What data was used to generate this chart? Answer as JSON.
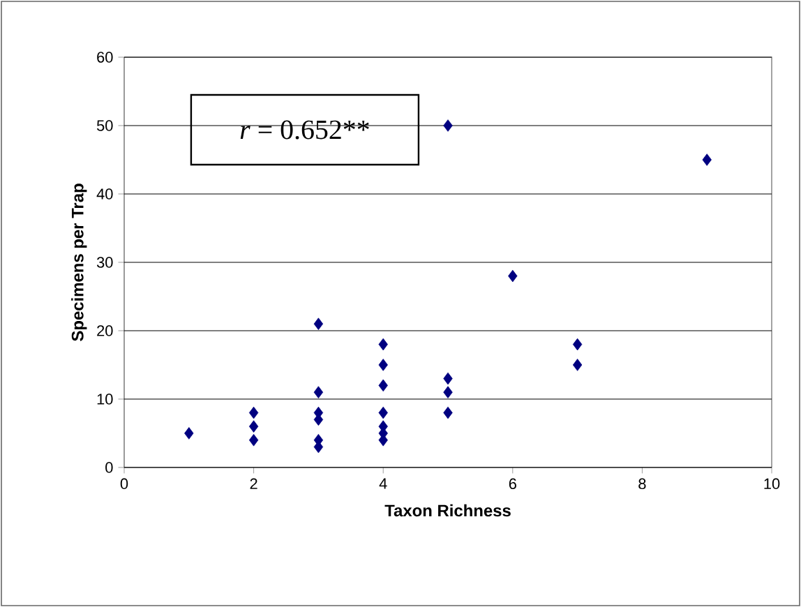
{
  "chart_data": {
    "type": "scatter",
    "xlabel": "Taxon Richness",
    "ylabel": "Specimens per Trap",
    "annotations": [
      "*r* = 0.652**"
    ],
    "series": [
      {
        "color": "#000080",
        "x": [
          1,
          2,
          2,
          2,
          3,
          3,
          3,
          3,
          3,
          3,
          4,
          4,
          4,
          4,
          4,
          4,
          4,
          5,
          5,
          5,
          5,
          6,
          7,
          7,
          9
        ],
        "values": [
          5,
          8,
          6,
          4,
          21,
          11,
          8,
          7,
          4,
          3,
          18,
          15,
          12,
          8,
          6,
          5,
          4,
          50,
          13,
          11,
          8,
          28,
          18,
          15,
          45
        ]
      }
    ],
    "xlim": [
      0,
      10
    ],
    "ylim": [
      0,
      60
    ],
    "xticks": [
      0,
      2,
      4,
      6,
      8,
      10
    ],
    "yticks": [
      0,
      10,
      20,
      30,
      40,
      50,
      60
    ],
    "grid": "y",
    "marker": "diamond"
  }
}
